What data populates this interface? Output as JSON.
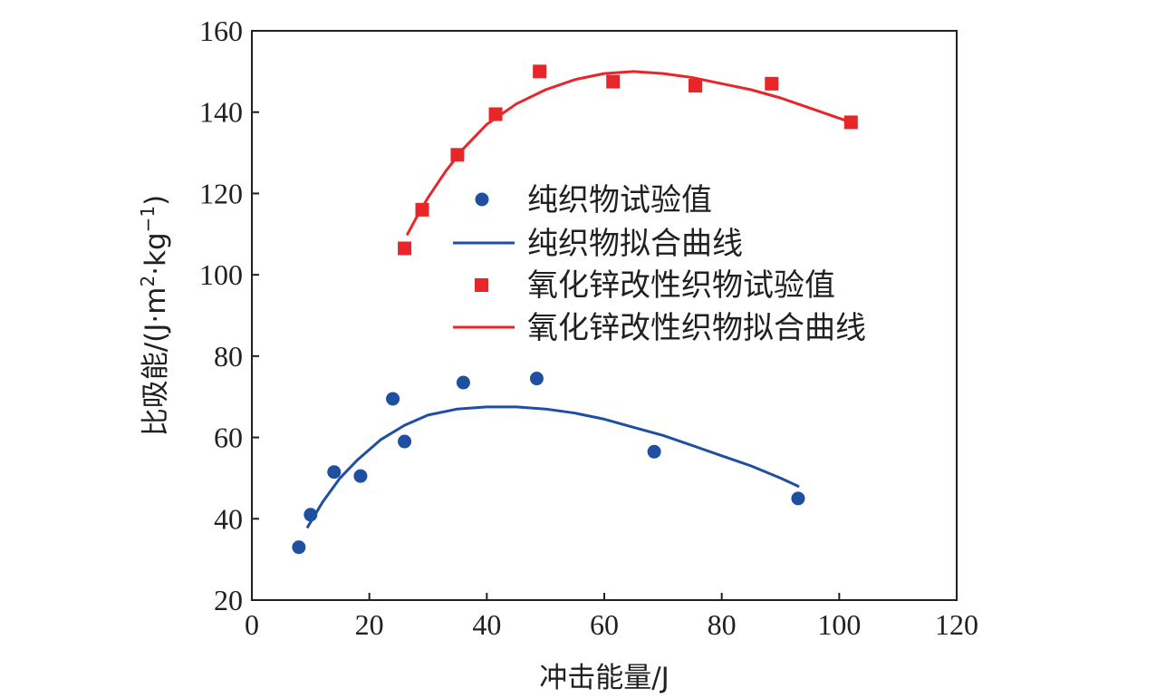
{
  "chart_data": {
    "type": "scatter",
    "xlabel": "冲击能量/J",
    "ylabel": {
      "prefix": "比吸能/(J·m",
      "sup1": "2",
      "mid": "·kg",
      "sup2": "−1",
      "suffix": ")"
    },
    "xlim": [
      0,
      120
    ],
    "ylim": [
      20,
      160
    ],
    "xticks": [
      "0",
      "20",
      "40",
      "60",
      "80",
      "100",
      "120"
    ],
    "yticks": [
      "20",
      "40",
      "60",
      "80",
      "100",
      "120",
      "140",
      "160"
    ],
    "grid": false,
    "legend_position": "center-right",
    "series": [
      {
        "name": "纯织物试验值",
        "kind": "points",
        "marker": "circle",
        "color": "#1f4fa0",
        "x": [
          8,
          10,
          14,
          18.5,
          24,
          26,
          36,
          48.5,
          68.5,
          93
        ],
        "y": [
          33,
          41,
          51.5,
          50.5,
          69.5,
          59,
          73.5,
          74.5,
          56.5,
          45
        ]
      },
      {
        "name": "纯织物拟合曲线",
        "kind": "curve",
        "color": "#1f4fa0",
        "x": [
          9.5,
          12,
          15,
          18,
          22,
          26,
          30,
          35,
          40,
          45,
          50,
          55,
          60,
          65,
          70,
          75,
          80,
          85,
          90,
          93
        ],
        "y": [
          38,
          44,
          50,
          54.5,
          59.5,
          63,
          65.5,
          67,
          67.5,
          67.5,
          67,
          66,
          64.5,
          62.5,
          60.5,
          58,
          55.5,
          53,
          50,
          48
        ]
      },
      {
        "name": "氧化锌改性织物试验值",
        "kind": "points",
        "marker": "square",
        "color": "#e8262a",
        "x": [
          26,
          29,
          35,
          41.5,
          49,
          61.5,
          75.5,
          88.5,
          102
        ],
        "y": [
          106.5,
          116,
          129.5,
          139.5,
          150,
          147.5,
          146.5,
          147,
          137.5
        ]
      },
      {
        "name": "氧化锌改性织物拟合曲线",
        "kind": "curve",
        "color": "#e8262a",
        "x": [
          26.5,
          28,
          30,
          33,
          36,
          40,
          45,
          50,
          55,
          60,
          65,
          70,
          75,
          80,
          85,
          90,
          95,
          100,
          102
        ],
        "y": [
          110,
          114,
          119,
          125.5,
          131,
          137,
          142,
          145.5,
          148,
          149.5,
          150,
          149.5,
          148.5,
          147,
          145.5,
          143.5,
          141,
          138.5,
          137.5
        ]
      }
    ]
  },
  "colors": {
    "axis": "#231f20",
    "blue": "#1f4fa0",
    "red": "#e8262a"
  }
}
